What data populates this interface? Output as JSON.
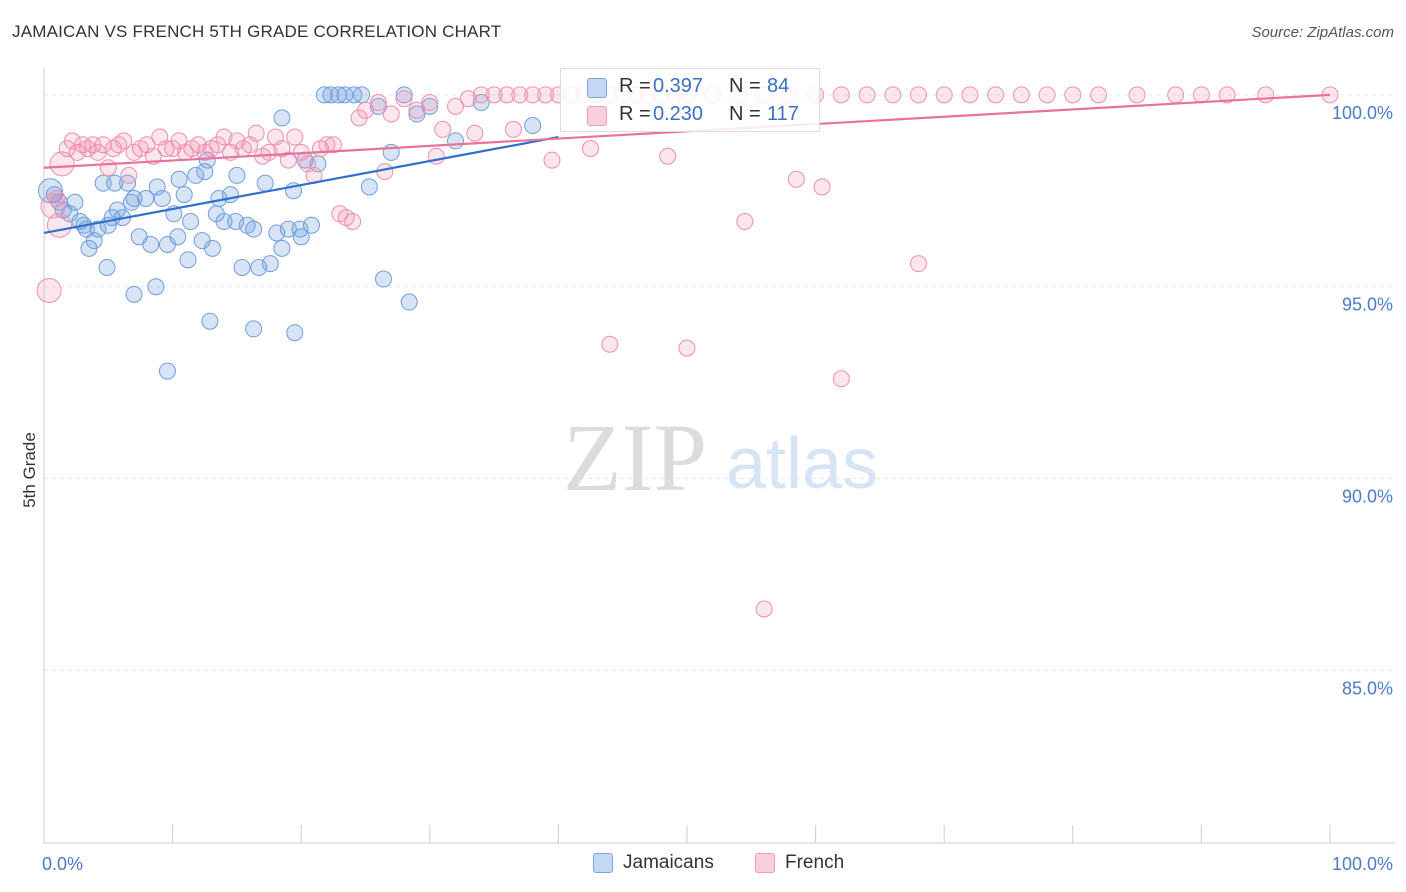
{
  "header": {
    "title": "JAMAICAN VS FRENCH 5TH GRADE CORRELATION CHART",
    "source": "Source: ZipAtlas.com"
  },
  "watermark": {
    "zip": "ZIP",
    "atlas": "atlas"
  },
  "legend_top": {
    "r_label": "R =",
    "n_label": "N =",
    "rows": [
      {
        "r": "0.397",
        "n": "84"
      },
      {
        "r": "0.230",
        "n": "117"
      }
    ]
  },
  "legend_bottom": {
    "items": [
      "Jamaicans",
      "French"
    ]
  },
  "chart_data": {
    "type": "scatter",
    "title": "JAMAICAN VS FRENCH 5TH GRADE CORRELATION CHART",
    "xlabel": "",
    "ylabel": "5th Grade",
    "xlim": [
      0,
      100
    ],
    "ylim": [
      80.5,
      100.7
    ],
    "x_tick_labels": [
      "0.0%",
      "100.0%"
    ],
    "y_ticks": [
      85,
      90,
      95,
      100
    ],
    "y_tick_labels": [
      "85.0%",
      "90.0%",
      "95.0%",
      "100.0%"
    ],
    "grid": true,
    "legend": "bottom-center",
    "colors": {
      "Jamaicans": "#6f9ee0",
      "French": "#f08fab",
      "Jamaicans_line": "#2e6fcf",
      "French_line": "#e8729a",
      "tick_text": "#4a7cc9"
    },
    "series": [
      {
        "name": "Jamaicans",
        "R": 0.397,
        "N": 84,
        "trend": {
          "x": [
            0,
            40
          ],
          "y": [
            96.4,
            98.9
          ]
        },
        "x": [
          0.5,
          0.8,
          1.2,
          1.5,
          2.0,
          2.4,
          2.8,
          3.1,
          3.5,
          3.9,
          4.2,
          4.6,
          5.0,
          5.3,
          5.7,
          6.1,
          6.5,
          7.0,
          7.4,
          7.9,
          8.3,
          8.8,
          9.2,
          9.6,
          10.1,
          10.5,
          10.9,
          11.4,
          11.8,
          12.3,
          12.7,
          13.1,
          13.6,
          14.0,
          14.5,
          14.9,
          15.4,
          15.8,
          16.3,
          16.7,
          17.2,
          17.6,
          18.1,
          18.5,
          19.0,
          19.4,
          19.9,
          20.3,
          20.8,
          21.3,
          21.8,
          22.3,
          22.9,
          23.4,
          24.1,
          24.7,
          25.3,
          26.0,
          27.0,
          28.0,
          29.0,
          30.0,
          32.0,
          34.0,
          38.0,
          12.9,
          16.3,
          19.5,
          26.4,
          28.4,
          7.0,
          8.7,
          9.6,
          11.2,
          10.4,
          13.4,
          15.0,
          12.5,
          5.5,
          6.8,
          18.5,
          20.0,
          3.3,
          4.9
        ],
        "y": [
          97.5,
          97.4,
          97.2,
          97.0,
          96.9,
          97.2,
          96.7,
          96.6,
          96.0,
          96.2,
          96.5,
          97.7,
          96.6,
          96.8,
          97.0,
          96.8,
          97.7,
          97.3,
          96.3,
          97.3,
          96.1,
          97.6,
          97.3,
          96.1,
          96.9,
          97.8,
          97.4,
          96.7,
          97.9,
          96.2,
          98.3,
          96.0,
          97.3,
          96.7,
          97.4,
          96.7,
          95.5,
          96.6,
          96.5,
          95.5,
          97.7,
          95.6,
          96.4,
          99.4,
          96.5,
          97.5,
          96.5,
          98.3,
          96.6,
          98.2,
          100.0,
          100.0,
          100.0,
          100.0,
          100.0,
          100.0,
          97.6,
          99.7,
          98.5,
          100.0,
          99.5,
          99.7,
          98.8,
          99.8,
          99.2,
          94.1,
          93.9,
          93.8,
          95.2,
          94.6,
          94.8,
          95.0,
          92.8,
          95.7,
          96.3,
          96.9,
          97.9,
          98.0,
          97.7,
          97.2,
          96.0,
          96.3,
          96.5,
          95.5
        ]
      },
      {
        "name": "French",
        "R": 0.23,
        "N": 117,
        "trend": {
          "x": [
            0,
            100
          ],
          "y": [
            98.1,
            100.0
          ]
        },
        "x": [
          0.4,
          0.7,
          1.0,
          1.4,
          1.8,
          2.2,
          2.6,
          3.0,
          3.4,
          3.8,
          4.2,
          4.6,
          5.0,
          5.4,
          5.8,
          6.2,
          6.6,
          7.0,
          7.5,
          8.0,
          8.5,
          9.0,
          9.5,
          10.0,
          10.5,
          11.0,
          11.5,
          12.0,
          12.5,
          13.0,
          13.5,
          14.0,
          14.5,
          15.0,
          15.5,
          16.0,
          16.5,
          17.0,
          17.5,
          18.0,
          18.5,
          19.0,
          19.5,
          20.0,
          20.5,
          21.0,
          21.5,
          22.0,
          22.5,
          23.0,
          23.5,
          24.0,
          24.5,
          25.0,
          26.0,
          27.0,
          28.0,
          29.0,
          30.0,
          31.0,
          32.0,
          33.0,
          34.0,
          35.0,
          36.0,
          37.0,
          38.0,
          39.0,
          40.0,
          41.0,
          42.0,
          43.0,
          44.0,
          45.0,
          46.0,
          47.0,
          48.0,
          49.0,
          50.0,
          52.0,
          54.0,
          56.0,
          58.0,
          60.0,
          62.0,
          64.0,
          66.0,
          68.0,
          70.0,
          72.0,
          74.0,
          76.0,
          78.0,
          80.0,
          82.0,
          85.0,
          88.0,
          90.0,
          92.0,
          95.0,
          100.0,
          44.0,
          50.0,
          56.0,
          62.0,
          68.0,
          26.5,
          30.5,
          33.5,
          36.5,
          39.5,
          42.5,
          48.5,
          54.5,
          58.5,
          60.5,
          1.2
        ],
        "y": [
          94.9,
          97.1,
          97.3,
          98.2,
          98.6,
          98.8,
          98.5,
          98.7,
          98.6,
          98.7,
          98.5,
          98.7,
          98.1,
          98.6,
          98.7,
          98.8,
          97.9,
          98.5,
          98.6,
          98.7,
          98.4,
          98.9,
          98.6,
          98.6,
          98.8,
          98.5,
          98.6,
          98.7,
          98.5,
          98.6,
          98.7,
          98.9,
          98.5,
          98.8,
          98.6,
          98.7,
          99.0,
          98.4,
          98.5,
          98.9,
          98.6,
          98.3,
          98.9,
          98.5,
          98.2,
          97.9,
          98.6,
          98.7,
          98.7,
          96.9,
          96.8,
          96.7,
          99.4,
          99.6,
          99.8,
          99.5,
          99.9,
          99.6,
          99.8,
          99.1,
          99.7,
          99.9,
          100.0,
          100.0,
          100.0,
          100.0,
          100.0,
          100.0,
          100.0,
          100.0,
          100.0,
          100.0,
          100.0,
          100.0,
          100.0,
          100.0,
          100.0,
          100.0,
          100.0,
          100.0,
          100.0,
          100.0,
          100.0,
          100.0,
          100.0,
          100.0,
          100.0,
          100.0,
          100.0,
          100.0,
          100.0,
          100.0,
          100.0,
          100.0,
          100.0,
          100.0,
          100.0,
          100.0,
          100.0,
          100.0,
          100.0,
          93.5,
          93.4,
          86.6,
          92.6,
          95.6,
          98.0,
          98.4,
          99.0,
          99.1,
          98.3,
          98.6,
          98.4,
          96.7,
          97.8,
          97.6,
          96.6
        ]
      }
    ]
  }
}
